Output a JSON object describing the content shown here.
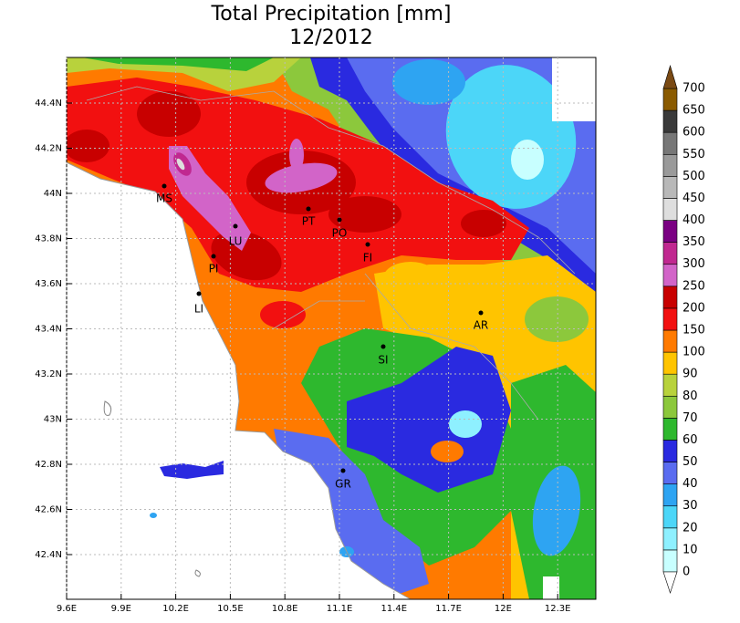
{
  "title": "Total Precipitation [mm]",
  "subtitle": "12/2012",
  "lon_ticks": [
    "9.6E",
    "9.9E",
    "10.2E",
    "10.5E",
    "10.8E",
    "11.1E",
    "11.4E",
    "11.7E",
    "12E",
    "12.3E"
  ],
  "lat_ticks": [
    "44.4N",
    "44.2N",
    "44N",
    "43.8N",
    "43.6N",
    "43.4N",
    "43.2N",
    "43N",
    "42.8N",
    "42.6N",
    "42.4N"
  ],
  "cities": [
    "MS",
    "LU",
    "PI",
    "LI",
    "PT",
    "PO",
    "FI",
    "SI",
    "AR",
    "GR"
  ],
  "colorbar": {
    "levels": [
      "0",
      "10",
      "20",
      "30",
      "40",
      "50",
      "60",
      "70",
      "80",
      "90",
      "100",
      "150",
      "200",
      "250",
      "300",
      "350",
      "400",
      "450",
      "500",
      "550",
      "600",
      "650",
      "700"
    ],
    "colors": [
      "#c8ffff",
      "#8ef0ff",
      "#4cd6f8",
      "#2ea4f2",
      "#5a6cf0",
      "#2a2ae0",
      "#2eb82e",
      "#8cc83c",
      "#b8d23c",
      "#ffc400",
      "#ff7a00",
      "#f21010",
      "#c80000",
      "#d264c8",
      "#c02890",
      "#7a0082",
      "#dedede",
      "#b8b8b8",
      "#9a9a9a",
      "#777777",
      "#3a3a3a",
      "#8a5a00",
      "#7a4a14"
    ]
  }
}
